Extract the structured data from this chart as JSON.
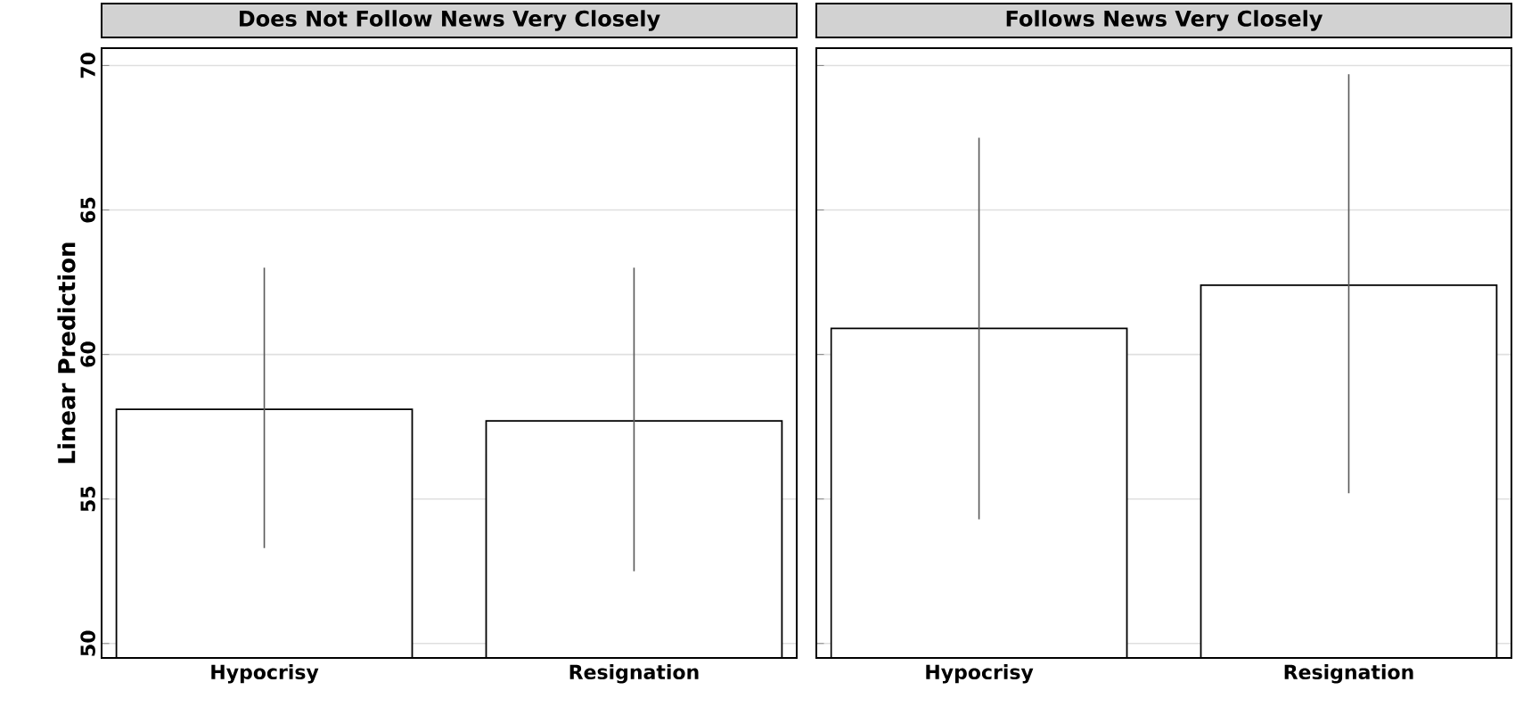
{
  "chart_data": [
    {
      "type": "bar",
      "title": "Does Not Follow News Very Closely",
      "ylabel": "Linear Prediction",
      "categories": [
        "Hypocrisy",
        "Resignation"
      ],
      "values": [
        58.1,
        57.7
      ],
      "errors": [
        [
          53.3,
          63.0
        ],
        [
          52.5,
          63.0
        ]
      ],
      "color": "#ffffff",
      "ylim": [
        49.5,
        70.6
      ],
      "yticks": [
        50,
        55,
        60,
        65,
        70
      ],
      "grid": "y"
    },
    {
      "type": "bar",
      "title": "Follows News Very Closely",
      "categories": [
        "Hypocrisy",
        "Resignation"
      ],
      "values": [
        60.9,
        62.4
      ],
      "errors": [
        [
          54.3,
          67.5
        ],
        [
          55.2,
          69.7
        ]
      ],
      "color": "#ffffff",
      "ylim": [
        49.5,
        70.6
      ],
      "yticks": [
        50,
        55,
        60,
        65,
        70
      ],
      "grid": "y",
      "tick_labels": "x"
    }
  ]
}
